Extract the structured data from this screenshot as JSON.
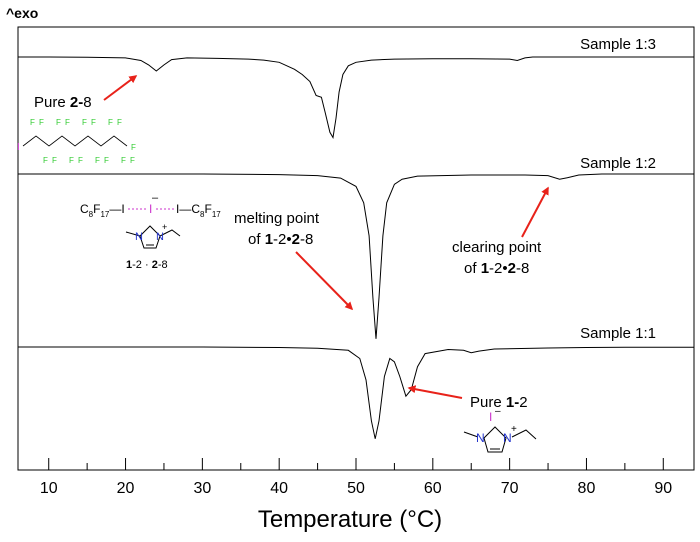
{
  "chart_data": {
    "type": "line",
    "corner_label": "^exo",
    "xlabel": "Temperature (°C)",
    "xlim": [
      6,
      94
    ],
    "x_ticks": [
      10,
      20,
      30,
      40,
      50,
      60,
      70,
      80,
      90
    ],
    "minor_ticks": [
      15,
      25,
      35,
      45,
      55,
      65,
      75,
      85
    ],
    "grid": false,
    "series": [
      {
        "name": "Sample 1:3",
        "points": [
          [
            6,
            0
          ],
          [
            10,
            0
          ],
          [
            15,
            0.01
          ],
          [
            20,
            0.05
          ],
          [
            22,
            0.2
          ],
          [
            23,
            0.45
          ],
          [
            24,
            0.8
          ],
          [
            25,
            0.45
          ],
          [
            26,
            0.15
          ],
          [
            28,
            0.05
          ],
          [
            32,
            0.08
          ],
          [
            36,
            0.12
          ],
          [
            38,
            0.18
          ],
          [
            40,
            0.3
          ],
          [
            42,
            0.7
          ],
          [
            43,
            1.0
          ],
          [
            44,
            1.4
          ],
          [
            44.8,
            2.2
          ],
          [
            45.5,
            2.3
          ],
          [
            46,
            3.2
          ],
          [
            46.6,
            4.3
          ],
          [
            47,
            4.6
          ],
          [
            47.4,
            3.5
          ],
          [
            47.8,
            2.0
          ],
          [
            48.3,
            1.0
          ],
          [
            49,
            0.5
          ],
          [
            50,
            0.3
          ],
          [
            52,
            0.18
          ],
          [
            55,
            0.12
          ],
          [
            60,
            0.1
          ],
          [
            65,
            0.1
          ],
          [
            70,
            0.12
          ],
          [
            71,
            0.2
          ],
          [
            72,
            0.05
          ],
          [
            73,
            0.0
          ],
          [
            80,
            0
          ],
          [
            94,
            0
          ]
        ]
      },
      {
        "name": "Sample 1:2",
        "points": [
          [
            6,
            0
          ],
          [
            30,
            0
          ],
          [
            40,
            0.03
          ],
          [
            45,
            0.08
          ],
          [
            48,
            0.2
          ],
          [
            50,
            0.6
          ],
          [
            51,
            1.4
          ],
          [
            51.7,
            3.0
          ],
          [
            52.2,
            6.0
          ],
          [
            52.6,
            8.0
          ],
          [
            53,
            6.0
          ],
          [
            53.5,
            3.0
          ],
          [
            54,
            1.4
          ],
          [
            55,
            0.5
          ],
          [
            56,
            0.25
          ],
          [
            58,
            0.1
          ],
          [
            65,
            0.05
          ],
          [
            72,
            0.05
          ],
          [
            75,
            0.08
          ],
          [
            76.5,
            0.25
          ],
          [
            77.5,
            0.18
          ],
          [
            79,
            0.05
          ],
          [
            82,
            0
          ],
          [
            94,
            0
          ]
        ]
      },
      {
        "name": "Sample 1:1",
        "points": [
          [
            6,
            0
          ],
          [
            30,
            0
          ],
          [
            40,
            0.03
          ],
          [
            45,
            0.08
          ],
          [
            49,
            0.2
          ],
          [
            50.5,
            0.7
          ],
          [
            51.3,
            2.0
          ],
          [
            52,
            4.5
          ],
          [
            52.5,
            5.6
          ],
          [
            53,
            4.5
          ],
          [
            53.7,
            1.8
          ],
          [
            54.4,
            0.7
          ],
          [
            55,
            0.9
          ],
          [
            55.7,
            1.8
          ],
          [
            56.5,
            3.0
          ],
          [
            57.2,
            2.6
          ],
          [
            58,
            1.2
          ],
          [
            59,
            0.4
          ],
          [
            62,
            0.15
          ],
          [
            64,
            0.2
          ],
          [
            65,
            0.35
          ],
          [
            66,
            0.25
          ],
          [
            68,
            0.12
          ],
          [
            75,
            0.06
          ],
          [
            80,
            0.03
          ],
          [
            85,
            0.02
          ],
          [
            94,
            0.02
          ]
        ]
      }
    ],
    "annotations": {
      "pure_2_8": [
        "Pure ",
        "2-",
        "8"
      ],
      "melting": [
        "melting point",
        "of  ",
        "1",
        "-2•",
        "2",
        "-8"
      ],
      "clearing": [
        "clearing point",
        "of  ",
        "1",
        "-2•",
        "2",
        "-8"
      ],
      "pure_1_2": [
        "Pure ",
        "1-",
        "2"
      ]
    },
    "molecules": {
      "perfluoro": {
        "iodine": "I",
        "fluorine": "F",
        "fluorine_count": 17
      },
      "complex": {
        "formula": [
          "C",
          "8",
          "F",
          "17",
          "—I",
          "I",
          "I—",
          "C",
          "8",
          "F",
          "17"
        ],
        "charge_minus": "–",
        "ring_N1": "N",
        "ring_N2": "N",
        "charge_plus": "+",
        "caption": [
          "1",
          "-2 · ",
          "2",
          "-8"
        ]
      },
      "salt": {
        "iodide": "I",
        "iodide_charge": "–",
        "ring_N1": "N",
        "ring_N2": "N",
        "charge_plus": "+"
      }
    },
    "colors": {
      "curve": "#000000",
      "arrow": "#e8221a",
      "fluorine": "#33cc33",
      "iodine": "#cc33cc",
      "nitrogen": "#2233cc",
      "dashed_bond": "#cc33cc"
    }
  }
}
